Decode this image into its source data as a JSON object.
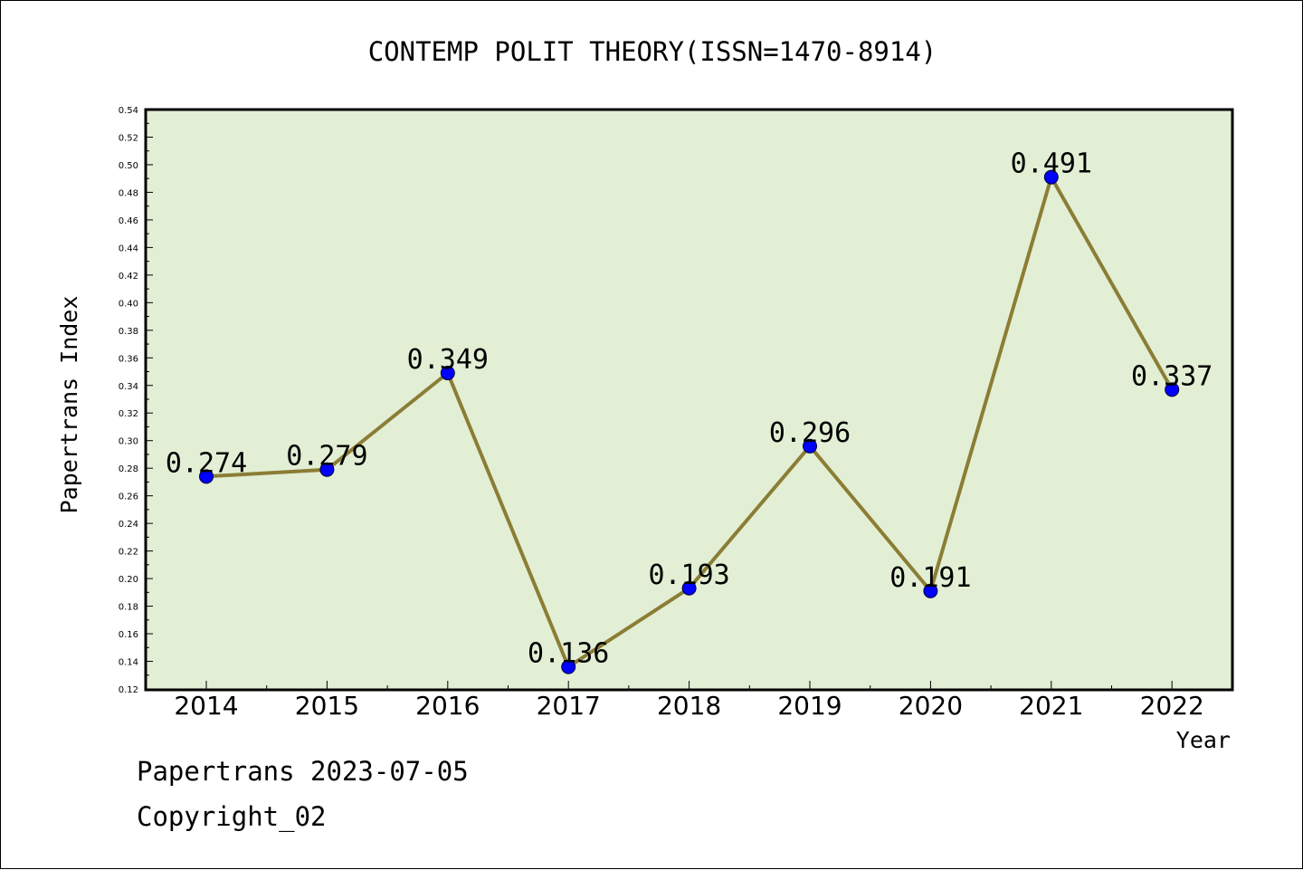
{
  "chart_data": {
    "type": "line",
    "title": "CONTEMP POLIT THEORY(ISSN=1470-8914)",
    "xlabel": "Year",
    "ylabel": "Papertrans Index",
    "categories": [
      "2014",
      "2015",
      "2016",
      "2017",
      "2018",
      "2019",
      "2020",
      "2021",
      "2022"
    ],
    "values": [
      0.274,
      0.279,
      0.349,
      0.136,
      0.193,
      0.296,
      0.191,
      0.491,
      0.337
    ],
    "data_labels": [
      "0.274",
      "0.279",
      "0.349",
      "0.136",
      "0.193",
      "0.296",
      "0.191",
      "0.491",
      "0.337"
    ],
    "ylim": [
      0.12,
      0.54
    ],
    "yticks": [
      "0.12",
      "0.14",
      "0.16",
      "0.18",
      "0.20",
      "0.22",
      "0.24",
      "0.26",
      "0.28",
      "0.30",
      "0.32",
      "0.34",
      "0.36",
      "0.38",
      "0.40",
      "0.42",
      "0.44",
      "0.46",
      "0.48",
      "0.50",
      "0.52",
      "0.54"
    ],
    "grid": false,
    "colors": {
      "line": "#8b7d35",
      "marker": "#0000ff",
      "plot_background": "#e2efd5"
    }
  },
  "footer": {
    "date_line": "Papertrans 2023-07-05",
    "copyright_line": "Copyright_02"
  }
}
